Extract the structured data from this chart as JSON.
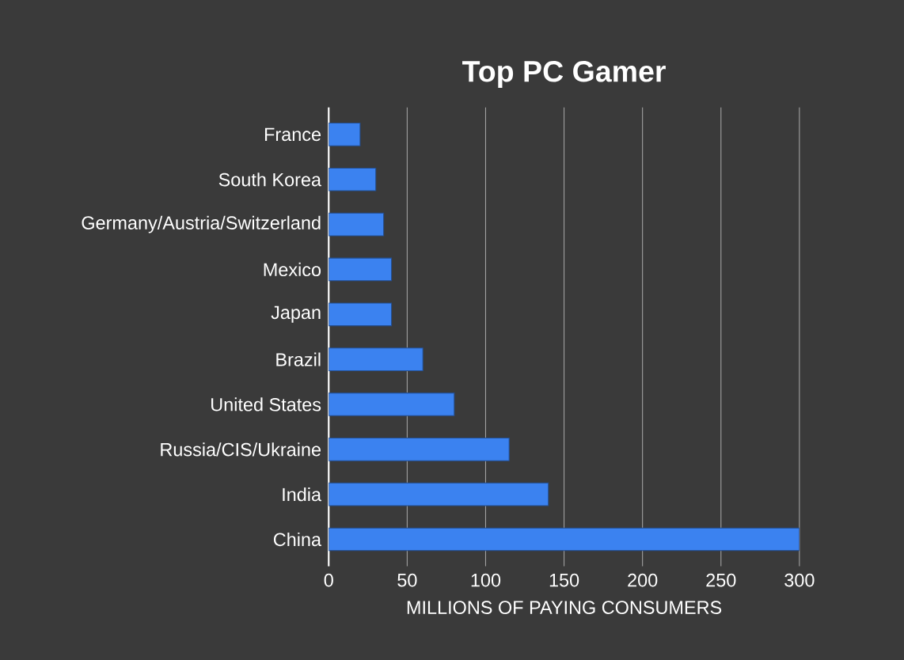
{
  "chart_data": {
    "type": "bar",
    "orientation": "horizontal",
    "title": "Top PC Gamer",
    "xlabel": "MILLIONS OF PAYING CONSUMERS",
    "categories": [
      "France",
      "South Korea",
      "Germany/Austria/Switzerland",
      "Mexico",
      "Japan",
      "Brazil",
      "United States",
      "Russia/CIS/Ukraine",
      "India",
      "China"
    ],
    "values": [
      20,
      30,
      35,
      40,
      40,
      60,
      80,
      115,
      140,
      300
    ],
    "color": "#3b82f0",
    "xlim": [
      0,
      300
    ],
    "xticks": [
      0,
      50,
      100,
      150,
      200,
      250,
      300
    ],
    "grid": "x"
  }
}
